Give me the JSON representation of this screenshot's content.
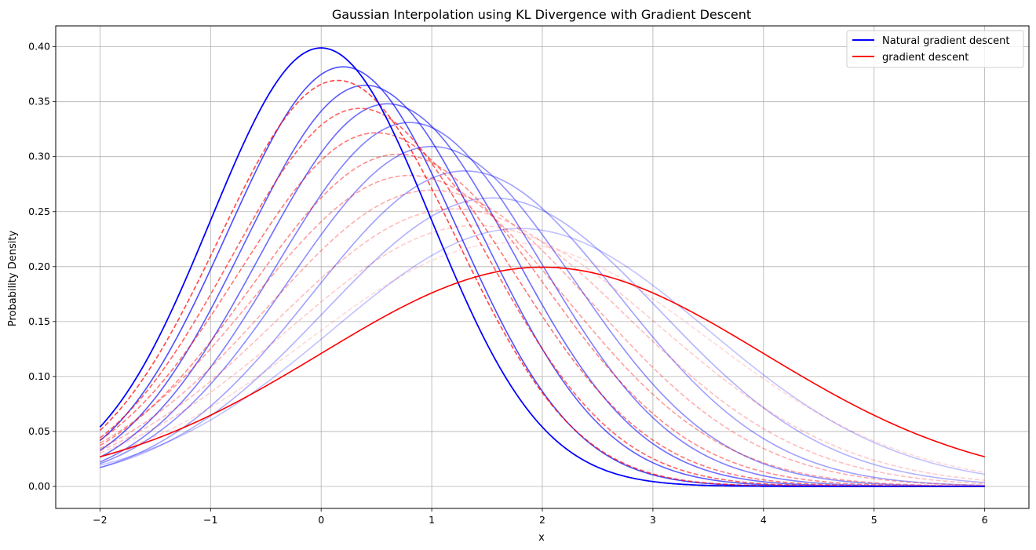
{
  "chart_data": {
    "type": "line",
    "title": "Gaussian Interpolation using KL Divergence with Gradient Descent",
    "xlabel": "x",
    "ylabel": "Probability Density",
    "xlim": [
      -2.4,
      6.4
    ],
    "ylim": [
      -0.02,
      0.419
    ],
    "x_domain": [
      -2,
      6
    ],
    "xticks": [
      -2,
      -1,
      0,
      1,
      2,
      3,
      4,
      5,
      6
    ],
    "xtick_labels": [
      "−2",
      "−1",
      "0",
      "1",
      "2",
      "3",
      "4",
      "5",
      "6"
    ],
    "yticks": [
      0.0,
      0.05,
      0.1,
      0.15,
      0.2,
      0.25,
      0.3,
      0.35,
      0.4
    ],
    "ytick_labels": [
      "0.00",
      "0.05",
      "0.10",
      "0.15",
      "0.20",
      "0.25",
      "0.30",
      "0.35",
      "0.40"
    ],
    "grid": true,
    "legend_position": "top-right",
    "legend": [
      {
        "label": "Natural gradient descent",
        "color": "#0000ff"
      },
      {
        "label": "gradient descent",
        "color": "#ff0000"
      }
    ],
    "series": [
      {
        "group": "natural",
        "color": "#0000ff",
        "style": "solid",
        "opacity": 1.0,
        "mu": 0.0,
        "sigma": 1.0
      },
      {
        "group": "natural",
        "color": "#0000ff",
        "style": "solid",
        "opacity": 0.7,
        "mu": 0.2,
        "sigma": 1.045
      },
      {
        "group": "natural",
        "color": "#0000ff",
        "style": "solid",
        "opacity": 0.64,
        "mu": 0.4,
        "sigma": 1.093
      },
      {
        "group": "natural",
        "color": "#0000ff",
        "style": "solid",
        "opacity": 0.58,
        "mu": 0.6,
        "sigma": 1.146
      },
      {
        "group": "natural",
        "color": "#0000ff",
        "style": "solid",
        "opacity": 0.5,
        "mu": 0.8,
        "sigma": 1.205
      },
      {
        "group": "natural",
        "color": "#0000ff",
        "style": "solid",
        "opacity": 0.44,
        "mu": 1.0,
        "sigma": 1.29
      },
      {
        "group": "natural",
        "color": "#0000ff",
        "style": "solid",
        "opacity": 0.37,
        "mu": 1.3,
        "sigma": 1.39
      },
      {
        "group": "natural",
        "color": "#0000ff",
        "style": "solid",
        "opacity": 0.3,
        "mu": 1.55,
        "sigma": 1.52
      },
      {
        "group": "natural",
        "color": "#0000ff",
        "style": "solid",
        "opacity": 0.24,
        "mu": 1.8,
        "sigma": 1.7
      },
      {
        "group": "gradient",
        "color": "#ff0000",
        "style": "dashed",
        "opacity": 0.72,
        "mu": 0.15,
        "sigma": 1.08
      },
      {
        "group": "gradient",
        "color": "#ff0000",
        "style": "dashed",
        "opacity": 0.62,
        "mu": 0.35,
        "sigma": 1.16
      },
      {
        "group": "gradient",
        "color": "#ff0000",
        "style": "dashed",
        "opacity": 0.54,
        "mu": 0.5,
        "sigma": 1.24
      },
      {
        "group": "gradient",
        "color": "#ff0000",
        "style": "dashed",
        "opacity": 0.46,
        "mu": 0.7,
        "sigma": 1.32
      },
      {
        "group": "gradient",
        "color": "#ff0000",
        "style": "dashed",
        "opacity": 0.38,
        "mu": 0.8,
        "sigma": 1.41
      },
      {
        "group": "gradient",
        "color": "#ff0000",
        "style": "dashed",
        "opacity": 0.32,
        "mu": 1.0,
        "sigma": 1.48
      },
      {
        "group": "gradient",
        "color": "#ff0000",
        "style": "dashed",
        "opacity": 0.26,
        "mu": 1.2,
        "sigma": 1.58
      },
      {
        "group": "gradient",
        "color": "#ff0000",
        "style": "dashed",
        "opacity": 0.2,
        "mu": 1.4,
        "sigma": 1.68
      },
      {
        "group": "gradient",
        "color": "#ff0000",
        "style": "dashed",
        "opacity": 0.15,
        "mu": 1.7,
        "sigma": 1.8
      },
      {
        "group": "natural",
        "color": "#0000ff",
        "style": "solid",
        "opacity": 1.0,
        "mu": 0.0,
        "sigma": 1.0
      },
      {
        "group": "gradient",
        "color": "#ff0000",
        "style": "solid",
        "opacity": 1.0,
        "mu": 2.0,
        "sigma": 2.0
      }
    ]
  }
}
